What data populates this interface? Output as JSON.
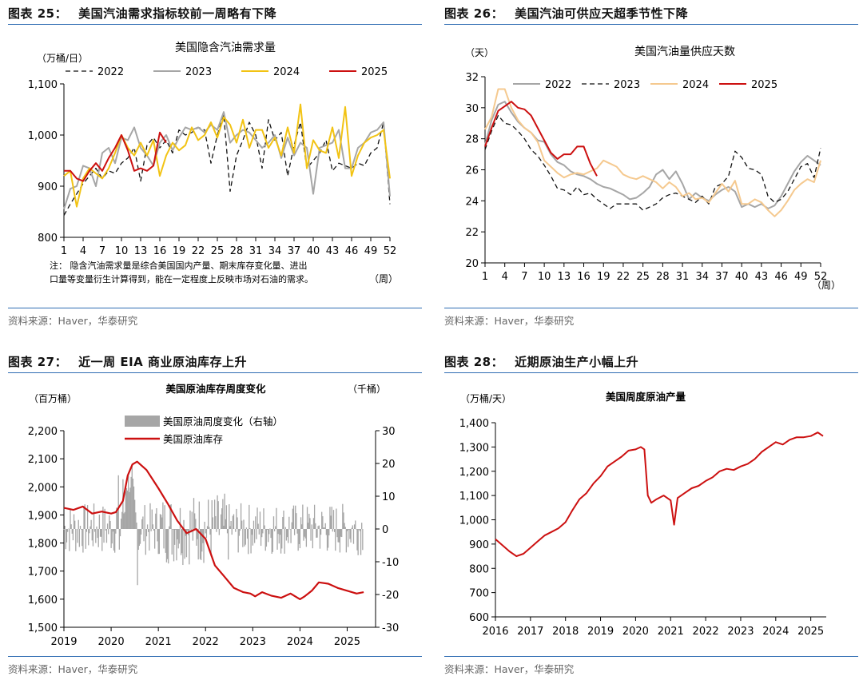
{
  "panels": [
    {
      "id": "p25",
      "figure_label": "图表 25：",
      "figure_title": "美国汽油需求指标较前一周略有下降",
      "source": "资料来源：Haver，华泰研究"
    },
    {
      "id": "p26",
      "figure_label": "图表 26：",
      "figure_title": "美国汽油可供应天超季节性下降",
      "source": "资料来源：Haver，华泰研究"
    },
    {
      "id": "p27",
      "figure_label": "图表 27：",
      "figure_title": "近一周 EIA 商业原油库存上升",
      "source": "资料来源：Haver，华泰研究"
    },
    {
      "id": "p28",
      "figure_label": "图表 28：",
      "figure_title": "近期原油生产小幅上升",
      "source": "资料来源：Haver，华泰研究"
    }
  ],
  "chart_data": [
    {
      "type": "line",
      "title": "美国隐含汽油需求量",
      "ylabel": "（万桶/日）",
      "xlabel": "（周）",
      "x_ticks": [
        1,
        4,
        7,
        10,
        13,
        16,
        19,
        22,
        25,
        28,
        31,
        34,
        37,
        40,
        43,
        46,
        49,
        52
      ],
      "ylim": [
        800,
        1100
      ],
      "y_ticks": [
        "800",
        "900",
        "1,000",
        "1,100"
      ],
      "note": [
        "注：  隐含汽油需求量是综合美国国内产量、期末库存变化量、进出",
        "口量等变量衍生计算得到，能在一定程度上反映市场对石油的需求。"
      ],
      "series": [
        {
          "name": "2022",
          "color": "#111111",
          "dash": "6,4",
          "width": 1.3,
          "values": [
            843,
            865,
            885,
            905,
            920,
            935,
            915,
            930,
            925,
            945,
            955,
            975,
            910,
            980,
            995,
            975,
            990,
            965,
            1010,
            1000,
            1005,
            1015,
            1010,
            945,
            1000,
            1040,
            890,
            960,
            990,
            1025,
            1000,
            935,
            1030,
            990,
            1005,
            920,
            980,
            1025,
            935,
            950,
            965,
            990,
            930,
            945,
            940,
            935,
            945,
            940,
            965,
            975,
            1025,
            865
          ]
        },
        {
          "name": "2023",
          "color": "#a6a6a6",
          "dash": "",
          "width": 2,
          "values": [
            855,
            895,
            900,
            940,
            935,
            900,
            965,
            975,
            945,
            995,
            990,
            1015,
            975,
            960,
            940,
            985,
            1000,
            970,
            995,
            1015,
            1010,
            1015,
            1005,
            1020,
            1010,
            1045,
            985,
            1000,
            1010,
            1005,
            990,
            975,
            985,
            1000,
            955,
            995,
            960,
            985,
            975,
            885,
            975,
            980,
            985,
            1010,
            935,
            935,
            975,
            985,
            1005,
            1010,
            1025,
            880
          ]
        },
        {
          "name": "2024",
          "color": "#f2c314",
          "dash": "",
          "width": 2,
          "values": [
            920,
            930,
            860,
            915,
            935,
            925,
            915,
            935,
            965,
            1000,
            975,
            960,
            985,
            960,
            990,
            920,
            960,
            985,
            970,
            980,
            1015,
            990,
            1000,
            1025,
            995,
            1035,
            1020,
            985,
            1030,
            975,
            1010,
            1010,
            975,
            995,
            960,
            1015,
            965,
            1060,
            935,
            990,
            970,
            965,
            1015,
            955,
            1055,
            920,
            960,
            985,
            995,
            1000,
            1010,
            915
          ]
        },
        {
          "name": "2025",
          "color": "#cc1010",
          "dash": "",
          "width": 2,
          "values": [
            930,
            930,
            915,
            910,
            930,
            945,
            930,
            955,
            975,
            1000,
            970,
            930,
            935,
            930,
            940,
            1005,
            985
          ]
        }
      ]
    },
    {
      "type": "line",
      "title": "美国汽油量供应天数",
      "ylabel": "（天）",
      "xlabel": "（周）",
      "x_ticks": [
        1,
        4,
        7,
        10,
        13,
        16,
        19,
        22,
        25,
        28,
        31,
        34,
        37,
        40,
        43,
        46,
        49,
        52
      ],
      "ylim": [
        20,
        32
      ],
      "y_ticks": [
        "20",
        "22",
        "24",
        "26",
        "28",
        "30",
        "32"
      ],
      "series": [
        {
          "name": "2022",
          "color": "#a6a6a6",
          "dash": "",
          "width": 2,
          "values": [
            27.6,
            29.2,
            30.2,
            30.4,
            29.7,
            29.1,
            28.7,
            28.4,
            27.9,
            27.8,
            27.0,
            26.5,
            26.3,
            25.9,
            25.7,
            25.6,
            25.4,
            25.1,
            24.9,
            24.8,
            24.6,
            24.4,
            24.1,
            24.2,
            24.5,
            24.9,
            25.7,
            26.0,
            25.4,
            25.9,
            25.1,
            24.1,
            24.5,
            24.2,
            24.0,
            24.4,
            24.7,
            24.9,
            24.6,
            23.6,
            23.8,
            23.6,
            23.8,
            23.5,
            23.7,
            24.3,
            25.1,
            25.9,
            26.5,
            26.9,
            26.6,
            26.3
          ]
        },
        {
          "name": "2023",
          "color": "#111111",
          "dash": "6,4",
          "width": 1.3,
          "values": [
            27.3,
            28.5,
            29.5,
            29.0,
            28.9,
            28.5,
            28.0,
            27.3,
            26.9,
            26.3,
            25.6,
            24.8,
            24.7,
            24.4,
            24.9,
            24.4,
            24.5,
            24.1,
            23.8,
            23.5,
            23.8,
            23.8,
            23.8,
            23.8,
            23.4,
            23.6,
            23.8,
            24.2,
            24.4,
            24.5,
            24.3,
            24.1,
            23.9,
            24.3,
            23.8,
            24.9,
            25.1,
            25.6,
            27.2,
            26.8,
            26.1,
            26.0,
            25.7,
            24.3,
            23.9,
            24.1,
            24.6,
            25.4,
            26.2,
            26.4,
            25.5,
            27.4
          ]
        },
        {
          "name": "2024",
          "color": "#f5c98f",
          "dash": "",
          "width": 2,
          "values": [
            28.6,
            29.4,
            31.2,
            31.2,
            30.0,
            29.2,
            28.7,
            28.4,
            27.8,
            26.6,
            26.2,
            25.8,
            25.5,
            25.7,
            25.8,
            25.7,
            25.9,
            26.1,
            26.6,
            26.4,
            26.2,
            25.7,
            25.5,
            25.4,
            25.6,
            25.4,
            25.2,
            24.8,
            25.2,
            24.9,
            24.3,
            24.5,
            24.1,
            24.2,
            23.9,
            24.5,
            25.1,
            24.6,
            25.3,
            23.8,
            23.8,
            24.1,
            23.9,
            23.4,
            23.0,
            23.4,
            24.0,
            24.7,
            25.1,
            25.4,
            25.2,
            26.6
          ]
        },
        {
          "name": "2025",
          "color": "#cc1010",
          "dash": "",
          "width": 2,
          "values": [
            27.5,
            28.7,
            29.8,
            30.1,
            30.4,
            30.0,
            29.9,
            29.5,
            28.7,
            27.9,
            27.1,
            26.7,
            27.0,
            27.0,
            27.5,
            27.5,
            26.4,
            25.6
          ]
        }
      ]
    },
    {
      "type": "bar+line",
      "title": "美国原油库存周度变化",
      "ylabel_left": "（百万桶）",
      "ylabel_right": "（千桶）",
      "x_ticks": [
        "2019",
        "2020",
        "2021",
        "2022",
        "2023",
        "2024",
        "2025"
      ],
      "ylim_left": [
        1500,
        2200
      ],
      "ylim_right": [
        -30,
        30
      ],
      "y_ticks_left": [
        "1,500",
        "1,600",
        "1,700",
        "1,800",
        "1,900",
        "2,000",
        "2,100",
        "2,200"
      ],
      "y_ticks_right": [
        "-30",
        "-20",
        "-10",
        "0",
        "10",
        "20",
        "30"
      ],
      "series": [
        {
          "name": "美国原油周度变化（右轴）",
          "axis": "right",
          "color": "#a6a6a6",
          "kind": "bar"
        },
        {
          "name": "美国原油库存",
          "axis": "left",
          "color": "#cc1010",
          "kind": "line",
          "x": [
            2019.0,
            2019.2,
            2019.4,
            2019.6,
            2019.8,
            2020.0,
            2020.1,
            2020.25,
            2020.35,
            2020.45,
            2020.55,
            2020.75,
            2021.0,
            2021.2,
            2021.4,
            2021.6,
            2021.8,
            2022.0,
            2022.2,
            2022.4,
            2022.6,
            2022.8,
            2022.95,
            2023.05,
            2023.2,
            2023.4,
            2023.6,
            2023.8,
            2024.0,
            2024.1,
            2024.25,
            2024.4,
            2024.6,
            2024.8,
            2025.0,
            2025.2,
            2025.35
          ],
          "values": [
            1925,
            1918,
            1930,
            1905,
            1912,
            1905,
            1910,
            1950,
            2040,
            2080,
            2090,
            2060,
            1995,
            1940,
            1880,
            1835,
            1850,
            1815,
            1720,
            1680,
            1640,
            1625,
            1620,
            1610,
            1625,
            1612,
            1605,
            1620,
            1600,
            1610,
            1630,
            1660,
            1655,
            1640,
            1630,
            1620,
            1625
          ]
        }
      ]
    },
    {
      "type": "line",
      "title": "美国周度原油产量",
      "ylabel": "（万桶/天）",
      "x_ticks": [
        "2016",
        "2017",
        "2018",
        "2019",
        "2020",
        "2021",
        "2022",
        "2023",
        "2024",
        "2025"
      ],
      "ylim": [
        600,
        1400
      ],
      "y_ticks": [
        "600",
        "700",
        "800",
        "900",
        "1,000",
        "1,100",
        "1,200",
        "1,300",
        "1,400"
      ],
      "series": [
        {
          "name": "美国周度原油产量",
          "color": "#cc1010",
          "width": 2,
          "x": [
            2016.0,
            2016.2,
            2016.4,
            2016.6,
            2016.8,
            2017.0,
            2017.2,
            2017.4,
            2017.6,
            2017.8,
            2018.0,
            2018.2,
            2018.4,
            2018.6,
            2018.8,
            2019.0,
            2019.2,
            2019.4,
            2019.6,
            2019.8,
            2020.0,
            2020.15,
            2020.25,
            2020.35,
            2020.45,
            2020.6,
            2020.8,
            2021.0,
            2021.1,
            2021.2,
            2021.4,
            2021.6,
            2021.8,
            2022.0,
            2022.2,
            2022.4,
            2022.6,
            2022.8,
            2023.0,
            2023.2,
            2023.4,
            2023.6,
            2023.8,
            2024.0,
            2024.2,
            2024.4,
            2024.6,
            2024.8,
            2025.0,
            2025.2,
            2025.35
          ],
          "values": [
            920,
            895,
            870,
            850,
            860,
            885,
            910,
            935,
            950,
            965,
            990,
            1040,
            1085,
            1110,
            1150,
            1180,
            1220,
            1240,
            1260,
            1285,
            1290,
            1300,
            1290,
            1100,
            1070,
            1085,
            1100,
            1080,
            980,
            1090,
            1110,
            1130,
            1140,
            1160,
            1175,
            1200,
            1210,
            1205,
            1220,
            1230,
            1250,
            1280,
            1300,
            1320,
            1310,
            1330,
            1340,
            1340,
            1345,
            1360,
            1345
          ]
        }
      ]
    }
  ]
}
